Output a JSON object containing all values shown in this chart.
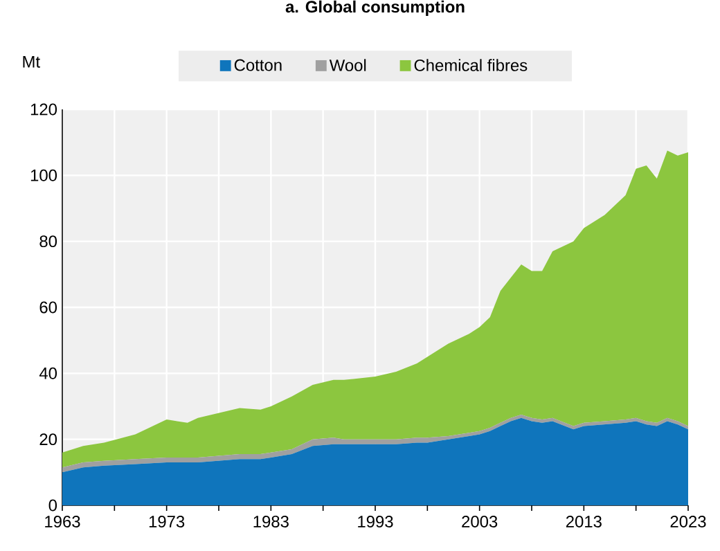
{
  "chart_data": {
    "type": "area",
    "stacked": true,
    "title": "a. Global consumption",
    "ylabel": "Mt",
    "x": [
      1963,
      1965,
      1967,
      1970,
      1973,
      1975,
      1976,
      1978,
      1980,
      1982,
      1983,
      1985,
      1987,
      1989,
      1990,
      1993,
      1995,
      1997,
      1998,
      2000,
      2002,
      2003,
      2004,
      2005,
      2006,
      2007,
      2008,
      2009,
      2010,
      2012,
      2013,
      2015,
      2017,
      2018,
      2019,
      2020,
      2021,
      2022,
      2023
    ],
    "series": [
      {
        "name": "Cotton",
        "color": "#0f75bc",
        "values": [
          10,
          11.5,
          12,
          12.5,
          13,
          13,
          13,
          13.5,
          14,
          14,
          14.5,
          15.5,
          18,
          18.5,
          18.5,
          18.5,
          18.5,
          19,
          19,
          20,
          21,
          21.5,
          22.5,
          24,
          25.5,
          26.5,
          25.5,
          25,
          25.5,
          23,
          24,
          24.5,
          25,
          25.5,
          24.5,
          24,
          25.5,
          24.5,
          23
        ]
      },
      {
        "name": "Wool",
        "color": "#a0a0a0",
        "values": [
          1.5,
          1.5,
          1.5,
          1.5,
          1.5,
          1.5,
          1.5,
          1.5,
          1.5,
          1.5,
          1.5,
          1.5,
          2,
          2,
          1.5,
          1.5,
          1.5,
          1.5,
          1.5,
          1,
          1,
          1,
          1,
          1,
          1,
          1,
          1,
          1,
          1,
          1,
          1,
          1,
          1,
          1,
          1,
          1,
          1,
          1,
          1
        ]
      },
      {
        "name": "Chemical fibres",
        "color": "#8cc63f",
        "values": [
          4.5,
          5,
          5.5,
          7.5,
          11.5,
          10.5,
          12,
          13,
          14,
          13.5,
          14,
          16,
          16.5,
          17.5,
          18,
          19,
          20.5,
          22.5,
          24.5,
          28,
          30,
          31.5,
          33.5,
          40,
          42.5,
          45.5,
          44.5,
          45,
          50.5,
          56,
          59,
          62.5,
          68,
          75.5,
          77.5,
          74,
          81,
          80.5,
          83
        ]
      }
    ],
    "xlim": [
      1963,
      2023
    ],
    "ylim": [
      0,
      120
    ],
    "xticks": [
      1963,
      {
        "value": 1968,
        "label": null
      },
      1973,
      {
        "value": 1978,
        "label": null
      },
      1983,
      {
        "value": 1988,
        "label": null
      },
      1993,
      {
        "value": 1998,
        "label": null
      },
      2003,
      {
        "value": 2008,
        "label": null
      },
      2013,
      {
        "value": 2018,
        "label": null
      },
      2023
    ],
    "yticks": [
      0,
      20,
      40,
      60,
      80,
      100,
      120
    ],
    "grid": true,
    "legend": "top"
  }
}
